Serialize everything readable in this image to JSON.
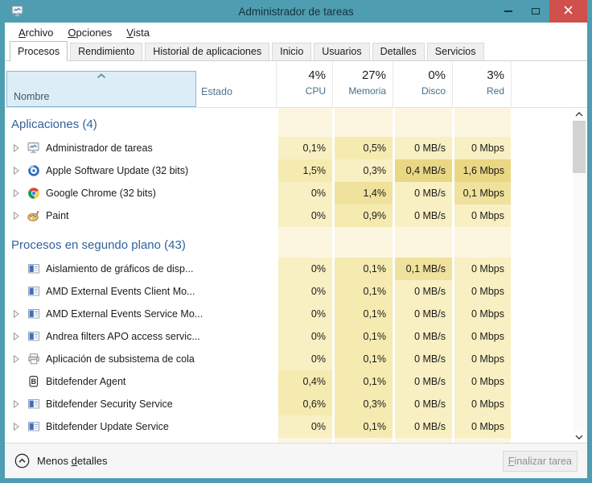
{
  "window": {
    "title": "Administrador de tareas"
  },
  "menu": {
    "items": [
      {
        "id": "archivo",
        "pre": "",
        "u": "A",
        "post": "rchivo"
      },
      {
        "id": "opciones",
        "pre": "",
        "u": "O",
        "post": "pciones"
      },
      {
        "id": "vista",
        "pre": "",
        "u": "V",
        "post": "ista"
      }
    ]
  },
  "tabs": [
    {
      "label": "Procesos",
      "active": true
    },
    {
      "label": "Rendimiento",
      "active": false
    },
    {
      "label": "Historial de aplicaciones",
      "active": false
    },
    {
      "label": "Inicio",
      "active": false
    },
    {
      "label": "Usuarios",
      "active": false
    },
    {
      "label": "Detalles",
      "active": false
    },
    {
      "label": "Servicios",
      "active": false
    }
  ],
  "columns": {
    "name_header": "Nombre",
    "estado_header": "Estado",
    "stats": [
      {
        "key": "cpu",
        "percent": "4%",
        "label": "CPU"
      },
      {
        "key": "memoria",
        "percent": "27%",
        "label": "Memoria"
      },
      {
        "key": "disco",
        "percent": "0%",
        "label": "Disco"
      },
      {
        "key": "red",
        "percent": "3%",
        "label": "Red"
      }
    ]
  },
  "process_list": [
    {
      "type": "group",
      "label": "Aplicaciones (4)",
      "height": 36
    },
    {
      "type": "process",
      "name": "Administrador de tareas",
      "icon": "task-manager-icon",
      "expandable": true,
      "values": [
        "0,1%",
        "0,5%",
        "0 MB/s",
        "0 Mbps"
      ],
      "heat": [
        1,
        2,
        1,
        1
      ]
    },
    {
      "type": "process",
      "name": "Apple Software Update (32 bits)",
      "icon": "apple-update-icon",
      "expandable": true,
      "values": [
        "1,5%",
        "0,3%",
        "0,4 MB/s",
        "1,6 Mbps"
      ],
      "heat": [
        2,
        1,
        4,
        4
      ]
    },
    {
      "type": "process",
      "name": "Google Chrome (32 bits)",
      "icon": "chrome-icon",
      "expandable": true,
      "values": [
        "0%",
        "1,4%",
        "0 MB/s",
        "0,1 Mbps"
      ],
      "heat": [
        1,
        3,
        1,
        3
      ]
    },
    {
      "type": "process",
      "name": "Paint",
      "icon": "paint-icon",
      "expandable": true,
      "values": [
        "0%",
        "0,9%",
        "0 MB/s",
        "0 Mbps"
      ],
      "heat": [
        1,
        2,
        1,
        1
      ]
    },
    {
      "type": "group",
      "label": "Procesos en segundo plano (43)",
      "height": 38
    },
    {
      "type": "process",
      "name": "Aislamiento de gráficos de disp...",
      "icon": "window-icon",
      "expandable": false,
      "values": [
        "0%",
        "0,1%",
        "0,1 MB/s",
        "0 Mbps"
      ],
      "heat": [
        1,
        2,
        3,
        1
      ]
    },
    {
      "type": "process",
      "name": "AMD External Events Client Mo...",
      "icon": "window-icon",
      "expandable": false,
      "values": [
        "0%",
        "0,1%",
        "0 MB/s",
        "0 Mbps"
      ],
      "heat": [
        1,
        2,
        1,
        1
      ]
    },
    {
      "type": "process",
      "name": "AMD External Events Service Mo...",
      "icon": "window-icon",
      "expandable": true,
      "values": [
        "0%",
        "0,1%",
        "0 MB/s",
        "0 Mbps"
      ],
      "heat": [
        1,
        2,
        1,
        1
      ]
    },
    {
      "type": "process",
      "name": "Andrea filters APO access servic...",
      "icon": "window-icon",
      "expandable": true,
      "values": [
        "0%",
        "0,1%",
        "0 MB/s",
        "0 Mbps"
      ],
      "heat": [
        1,
        2,
        1,
        1
      ]
    },
    {
      "type": "process",
      "name": "Aplicación de subsistema de cola",
      "icon": "printer-icon",
      "expandable": true,
      "values": [
        "0%",
        "0,1%",
        "0 MB/s",
        "0 Mbps"
      ],
      "heat": [
        1,
        2,
        1,
        1
      ]
    },
    {
      "type": "process",
      "name": "Bitdefender Agent",
      "icon": "bitdefender-icon",
      "expandable": false,
      "values": [
        "0,4%",
        "0,1%",
        "0 MB/s",
        "0 Mbps"
      ],
      "heat": [
        2,
        2,
        1,
        1
      ]
    },
    {
      "type": "process",
      "name": "Bitdefender Security Service",
      "icon": "window-icon",
      "expandable": true,
      "values": [
        "0,6%",
        "0,3%",
        "0 MB/s",
        "0 Mbps"
      ],
      "heat": [
        2,
        2,
        1,
        1
      ]
    },
    {
      "type": "process",
      "name": "Bitdefender Update Service",
      "icon": "window-icon",
      "expandable": true,
      "values": [
        "0%",
        "0,1%",
        "0 MB/s",
        "0 Mbps"
      ],
      "heat": [
        1,
        2,
        1,
        1
      ]
    }
  ],
  "footer": {
    "less_details": {
      "pre": "Menos ",
      "u": "d",
      "post": "etalles"
    },
    "end_task": {
      "pre": "",
      "u": "F",
      "post": "inalizar tarea"
    }
  },
  "colors": {
    "titlebar": "#4e9db1",
    "close_button": "#d0504c",
    "group_text": "#31639c",
    "header_selected_bg": "#dcedf6",
    "header_selected_border": "#8ab8d6",
    "heat_levels": [
      "#fcf6e0",
      "#f8f0c2",
      "#f5ebb1",
      "#f0e29c",
      "#e9d784"
    ]
  }
}
